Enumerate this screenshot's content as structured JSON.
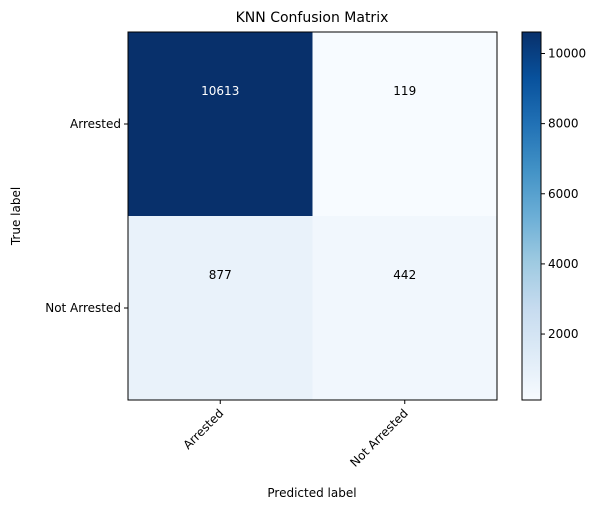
{
  "chart_data": {
    "type": "heatmap",
    "title": "KNN Confusion Matrix",
    "xlabel": "Predicted label",
    "ylabel": "True label",
    "x_categories": [
      "Arrested",
      "Not Arrested"
    ],
    "y_categories": [
      "Arrested",
      "Not Arrested"
    ],
    "values": [
      [
        10613,
        119
      ],
      [
        877,
        442
      ]
    ],
    "colormap": "Blues",
    "colorbar": {
      "range": [
        119,
        10613
      ],
      "ticks": [
        "2000",
        "4000",
        "6000",
        "8000",
        "10000"
      ]
    },
    "cell_text_colors": {
      "dark": "#ffffff",
      "light": "#000000"
    },
    "x_tick_rotation_deg": 45
  }
}
